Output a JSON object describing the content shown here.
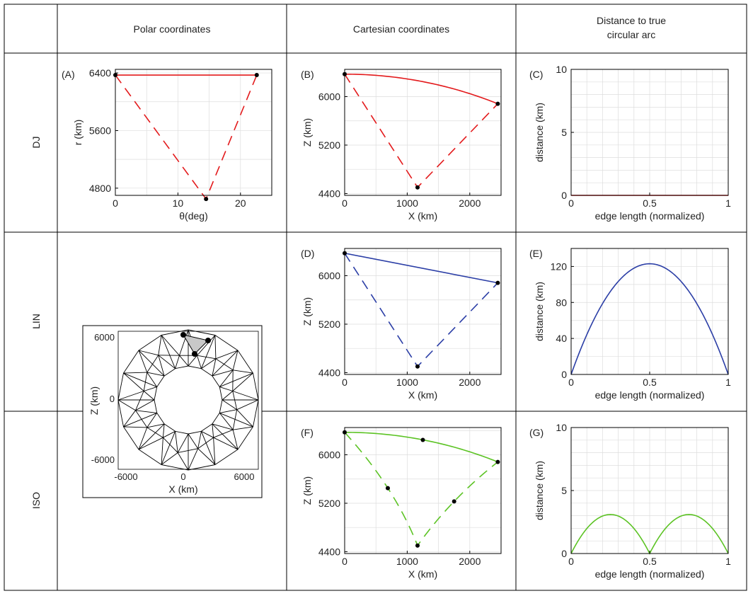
{
  "header": {
    "col1": "Polar coordinates",
    "col2": "Cartesian coordinates",
    "col3_line1": "Distance to true",
    "col3_line2": "circular arc"
  },
  "rows": [
    "DJ",
    "LIN",
    "ISO"
  ],
  "colors": {
    "red": "#e31a1c",
    "blue": "#2b3ea6",
    "green": "#5cc324",
    "grid": "#dddddd"
  },
  "chart_data": [
    {
      "id": "A",
      "panel_label": "(A)",
      "type": "line",
      "xlabel": "θ(deg)",
      "ylabel": "r (km)",
      "xlim": [
        0,
        25
      ],
      "ylim": [
        4700,
        6450
      ],
      "xticks": [
        0,
        10,
        20
      ],
      "yticks": [
        4800,
        5600,
        6400
      ],
      "color": "red",
      "series": [
        {
          "style": "solid",
          "x": [
            0,
            22.6
          ],
          "y": [
            6371,
            6371
          ]
        },
        {
          "style": "dashed",
          "x": [
            0,
            14.5,
            22.6
          ],
          "y": [
            6371,
            4650,
            6371
          ]
        }
      ],
      "points": {
        "x": [
          0,
          22.6,
          14.5
        ],
        "y": [
          6371,
          6371,
          4650
        ]
      }
    },
    {
      "id": "B",
      "panel_label": "(B)",
      "type": "line",
      "xlabel": "X (km)",
      "ylabel": "Z (km)",
      "xlim": [
        0,
        2500
      ],
      "ylim": [
        4370,
        6450
      ],
      "xticks": [
        0,
        1000,
        2000
      ],
      "yticks": [
        4400,
        5200,
        6000
      ],
      "color": "red",
      "series": [
        {
          "style": "solid",
          "arc": true,
          "radius": 6371,
          "theta": [
            0,
            22.6
          ]
        },
        {
          "style": "dashed",
          "x": [
            0,
            1165,
            2448
          ],
          "y": [
            6371,
            4502,
            5882
          ]
        }
      ],
      "points": {
        "x": [
          0,
          2448,
          1165
        ],
        "y": [
          6371,
          5882,
          4502
        ]
      }
    },
    {
      "id": "C",
      "panel_label": "(C)",
      "type": "line",
      "xlabel": "edge length (normalized)",
      "ylabel": "distance (km)",
      "xlim": [
        0,
        1
      ],
      "ylim": [
        0,
        10
      ],
      "xticks": [
        0,
        0.5,
        1
      ],
      "yticks": [
        0,
        5,
        10
      ],
      "color": "red",
      "series": [
        {
          "style": "solid",
          "kind": "zero"
        }
      ]
    },
    {
      "id": "D",
      "panel_label": "(D)",
      "type": "line",
      "xlabel": "X (km)",
      "ylabel": "Z (km)",
      "xlim": [
        0,
        2500
      ],
      "ylim": [
        4370,
        6450
      ],
      "xticks": [
        0,
        1000,
        2000
      ],
      "yticks": [
        4400,
        5200,
        6000
      ],
      "color": "blue",
      "series": [
        {
          "style": "solid",
          "x": [
            0,
            2448
          ],
          "y": [
            6371,
            5882
          ]
        },
        {
          "style": "dashed",
          "x": [
            0,
            1165,
            2448
          ],
          "y": [
            6371,
            4502,
            5882
          ]
        }
      ],
      "points": {
        "x": [
          0,
          2448,
          1165
        ],
        "y": [
          6371,
          5882,
          4502
        ]
      }
    },
    {
      "id": "E",
      "panel_label": "(E)",
      "type": "line",
      "xlabel": "edge length (normalized)",
      "ylabel": "distance (km)",
      "xlim": [
        0,
        1
      ],
      "ylim": [
        0,
        140
      ],
      "xticks": [
        0,
        0.5,
        1
      ],
      "yticks": [
        0,
        40,
        80,
        120
      ],
      "color": "blue",
      "series": [
        {
          "style": "solid",
          "kind": "parabola",
          "peak": 123,
          "humps": 1
        }
      ]
    },
    {
      "id": "F",
      "panel_label": "(F)",
      "type": "line",
      "xlabel": "X (km)",
      "ylabel": "Z (km)",
      "xlim": [
        0,
        2500
      ],
      "ylim": [
        4370,
        6450
      ],
      "xticks": [
        0,
        1000,
        2000
      ],
      "yticks": [
        4400,
        5200,
        6000
      ],
      "color": "green",
      "series": [
        {
          "style": "solid",
          "arc": true,
          "radius": 6371,
          "theta": [
            0,
            22.6
          ]
        },
        {
          "style": "dashed",
          "quadratic": true,
          "x": [
            0,
            1165,
            2448
          ],
          "y": [
            6371,
            4502,
            5882
          ],
          "mid": [
            [
              690,
              5450
            ],
            [
              1750,
              5230
            ]
          ]
        }
      ],
      "points": {
        "x": [
          0,
          1250,
          2448,
          690,
          1750,
          1165
        ],
        "y": [
          6371,
          6245,
          5882,
          5450,
          5230,
          4502
        ]
      }
    },
    {
      "id": "G",
      "panel_label": "(G)",
      "type": "line",
      "xlabel": "edge length (normalized)",
      "ylabel": "distance (km)",
      "xlim": [
        0,
        1
      ],
      "ylim": [
        0,
        10
      ],
      "xticks": [
        0,
        0.5,
        1
      ],
      "yticks": [
        0,
        5,
        10
      ],
      "color": "green",
      "series": [
        {
          "style": "solid",
          "kind": "parabola",
          "peak": 3.1,
          "humps": 2
        }
      ]
    }
  ],
  "mesh": {
    "xlabel": "X (km)",
    "ylabel": "Z (km)",
    "xticks": [
      "-6000",
      "0",
      "6000"
    ],
    "yticks": [
      "6000",
      "0",
      "-6000"
    ]
  }
}
